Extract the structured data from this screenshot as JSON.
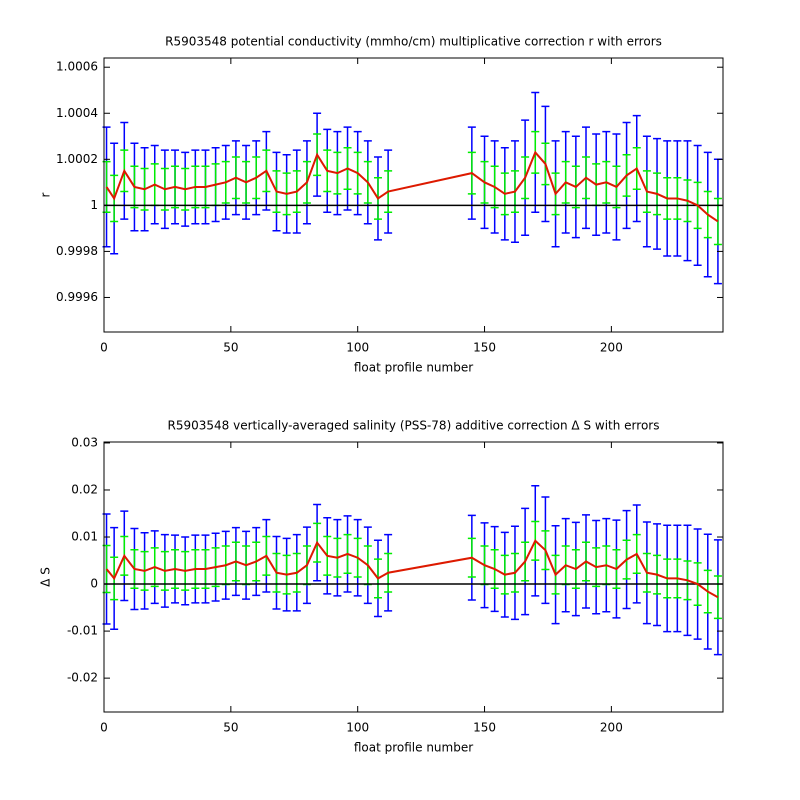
{
  "chart_data": [
    {
      "type": "errorbar",
      "title": "R5903548 potential conductivity (mmho/cm) multiplicative correction r with errors",
      "xlabel": "float profile number",
      "ylabel": "r",
      "xlim": [
        0,
        244
      ],
      "xticks": [
        0,
        50,
        100,
        150,
        200
      ],
      "ylim": [
        0.99945,
        1.00064
      ],
      "yticks": [
        0.9996,
        0.9998,
        1,
        1.0002,
        1.0004,
        1.0006
      ],
      "reference_line": 1,
      "reference_color": "#000000",
      "color": "#dd1a00",
      "x": [
        1,
        4,
        8,
        12,
        16,
        20,
        24,
        28,
        32,
        36,
        40,
        44,
        48,
        52,
        56,
        60,
        64,
        68,
        72,
        76,
        80,
        84,
        88,
        92,
        96,
        100,
        104,
        108,
        112,
        145,
        150,
        154,
        158,
        162,
        166,
        170,
        174,
        178,
        182,
        186,
        190,
        194,
        198,
        202,
        206,
        210,
        214,
        218,
        222,
        226,
        230,
        234,
        238,
        242
      ],
      "values": [
        1.00008,
        1.00003,
        1.00015,
        1.00008,
        1.00007,
        1.00009,
        1.00007,
        1.00008,
        1.00007,
        1.00008,
        1.00008,
        1.00009,
        1.0001,
        1.00012,
        1.0001,
        1.00012,
        1.00015,
        1.00006,
        1.00005,
        1.00006,
        1.0001,
        1.00022,
        1.00015,
        1.00014,
        1.00016,
        1.00014,
        1.0001,
        1.00003,
        1.00006,
        1.00014,
        1.0001,
        1.00008,
        1.00005,
        1.00006,
        1.00012,
        1.00023,
        1.00018,
        1.00005,
        1.0001,
        1.00008,
        1.00012,
        1.00009,
        1.0001,
        1.00008,
        1.00013,
        1.00016,
        1.00006,
        1.00005,
        1.00003,
        1.00003,
        1.00002,
        1,
        0.99996,
        0.99993
      ],
      "error_bars": [
        {
          "color": "#0000ff",
          "errors": [
            0.00026,
            0.00024,
            0.00021,
            0.00019,
            0.00018,
            0.00017,
            0.00017,
            0.00016,
            0.00016,
            0.00016,
            0.00016,
            0.00016,
            0.00016,
            0.00016,
            0.00016,
            0.00016,
            0.00017,
            0.00017,
            0.00017,
            0.00018,
            0.00018,
            0.00018,
            0.00018,
            0.00018,
            0.00018,
            0.00018,
            0.00018,
            0.00018,
            0.00018,
            0.0002,
            0.0002,
            0.0002,
            0.0002,
            0.00022,
            0.00025,
            0.00026,
            0.00025,
            0.00023,
            0.00022,
            0.00022,
            0.00022,
            0.00022,
            0.00022,
            0.00023,
            0.00023,
            0.00023,
            0.00024,
            0.00024,
            0.00025,
            0.00025,
            0.00026,
            0.00026,
            0.00027,
            0.00027
          ]
        },
        {
          "color": "#00ee00",
          "errors": [
            0.00011,
            0.0001,
            9e-05,
            9e-05,
            9e-05,
            9e-05,
            9e-05,
            9e-05,
            9e-05,
            9e-05,
            9e-05,
            9e-05,
            9e-05,
            9e-05,
            9e-05,
            9e-05,
            9e-05,
            9e-05,
            9e-05,
            9e-05,
            9e-05,
            9e-05,
            9e-05,
            9e-05,
            9e-05,
            9e-05,
            9e-05,
            9e-05,
            9e-05,
            9e-05,
            9e-05,
            9e-05,
            9e-05,
            9e-05,
            9e-05,
            9e-05,
            9e-05,
            9e-05,
            9e-05,
            9e-05,
            9e-05,
            9e-05,
            9e-05,
            9e-05,
            9e-05,
            9e-05,
            9e-05,
            9e-05,
            9e-05,
            9e-05,
            9e-05,
            0.0001,
            0.0001,
            0.0001
          ]
        }
      ]
    },
    {
      "type": "errorbar",
      "title": "R5903548 vertically-averaged salinity (PSS-78) additive correction Δ S with errors",
      "xlabel": "float profile number",
      "ylabel": "Δ S",
      "xlim": [
        0,
        244
      ],
      "xticks": [
        0,
        50,
        100,
        150,
        200
      ],
      "ylim": [
        -0.0272,
        0.0302
      ],
      "yticks": [
        -0.02,
        -0.01,
        0,
        0.01,
        0.02,
        0.03
      ],
      "reference_line": 0,
      "reference_color": "#000000",
      "color": "#dd1a00",
      "x": [
        1,
        4,
        8,
        12,
        16,
        20,
        24,
        28,
        32,
        36,
        40,
        44,
        48,
        52,
        56,
        60,
        64,
        68,
        72,
        76,
        80,
        84,
        88,
        92,
        96,
        100,
        104,
        108,
        112,
        145,
        150,
        154,
        158,
        162,
        166,
        170,
        174,
        178,
        182,
        186,
        190,
        194,
        198,
        202,
        206,
        210,
        214,
        218,
        222,
        226,
        230,
        234,
        238,
        242
      ],
      "values": [
        0.0032,
        0.0012,
        0.006,
        0.0032,
        0.0028,
        0.0036,
        0.0028,
        0.0032,
        0.0028,
        0.0032,
        0.0032,
        0.0036,
        0.004,
        0.0048,
        0.004,
        0.0048,
        0.006,
        0.0024,
        0.002,
        0.0024,
        0.004,
        0.0088,
        0.006,
        0.0056,
        0.0064,
        0.0056,
        0.004,
        0.0012,
        0.0024,
        0.0056,
        0.004,
        0.0032,
        0.002,
        0.0024,
        0.0048,
        0.0092,
        0.0072,
        0.002,
        0.004,
        0.0032,
        0.0048,
        0.0036,
        0.004,
        0.0032,
        0.0052,
        0.0064,
        0.0024,
        0.002,
        0.0012,
        0.0012,
        0.0008,
        0,
        -0.0016,
        -0.0028
      ],
      "error_bars": [
        {
          "color": "#0000ff",
          "errors": [
            0.0117,
            0.0108,
            0.0095,
            0.0086,
            0.0081,
            0.0077,
            0.0077,
            0.0072,
            0.0072,
            0.0072,
            0.0072,
            0.0072,
            0.0072,
            0.0072,
            0.0072,
            0.0072,
            0.0077,
            0.0077,
            0.0077,
            0.0081,
            0.0081,
            0.0081,
            0.0081,
            0.0081,
            0.0081,
            0.0081,
            0.0081,
            0.0081,
            0.0081,
            0.009,
            0.009,
            0.009,
            0.009,
            0.0099,
            0.0113,
            0.0117,
            0.0113,
            0.0104,
            0.0099,
            0.0099,
            0.0099,
            0.0099,
            0.0099,
            0.0104,
            0.0104,
            0.0104,
            0.0108,
            0.0108,
            0.0113,
            0.0113,
            0.0117,
            0.0117,
            0.0122,
            0.0122
          ]
        },
        {
          "color": "#00ee00",
          "errors": [
            0.005,
            0.0045,
            0.0041,
            0.0041,
            0.0041,
            0.0041,
            0.0041,
            0.0041,
            0.0041,
            0.0041,
            0.0041,
            0.0041,
            0.0041,
            0.0041,
            0.0041,
            0.0041,
            0.0041,
            0.0041,
            0.0041,
            0.0041,
            0.0041,
            0.0041,
            0.0041,
            0.0041,
            0.0041,
            0.0041,
            0.0041,
            0.0041,
            0.0041,
            0.0041,
            0.0041,
            0.0041,
            0.0041,
            0.0041,
            0.0041,
            0.0041,
            0.0041,
            0.0041,
            0.0041,
            0.0041,
            0.0041,
            0.0041,
            0.0041,
            0.0041,
            0.0041,
            0.0041,
            0.0041,
            0.0041,
            0.0041,
            0.0041,
            0.0041,
            0.0045,
            0.0045,
            0.0045
          ]
        }
      ]
    }
  ]
}
